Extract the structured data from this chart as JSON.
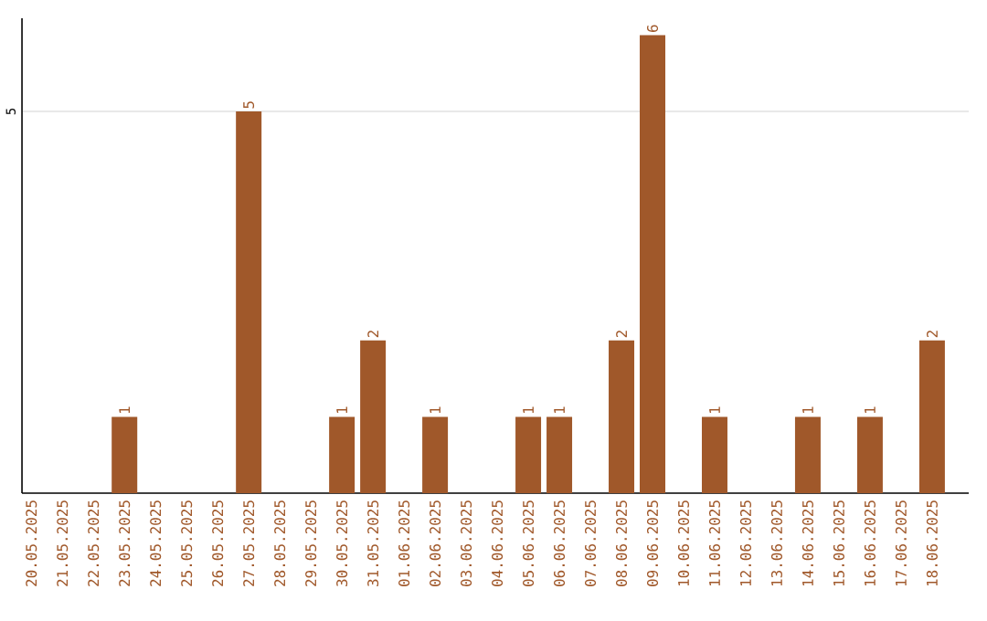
{
  "chart_data": {
    "type": "bar",
    "categories": [
      "20.05.2025",
      "21.05.2025",
      "22.05.2025",
      "23.05.2025",
      "24.05.2025",
      "25.05.2025",
      "26.05.2025",
      "27.05.2025",
      "28.05.2025",
      "29.05.2025",
      "30.05.2025",
      "31.05.2025",
      "01.06.2025",
      "02.06.2025",
      "03.06.2025",
      "04.06.2025",
      "05.06.2025",
      "06.06.2025",
      "07.06.2025",
      "08.06.2025",
      "09.06.2025",
      "10.06.2025",
      "11.06.2025",
      "12.06.2025",
      "13.06.2025",
      "14.06.2025",
      "15.06.2025",
      "16.06.2025",
      "17.06.2025",
      "18.06.2025"
    ],
    "values": [
      0,
      0,
      0,
      1,
      0,
      0,
      0,
      5,
      0,
      0,
      1,
      2,
      0,
      1,
      0,
      0,
      1,
      1,
      0,
      2,
      6,
      0,
      1,
      0,
      0,
      1,
      0,
      1,
      0,
      2
    ],
    "value_labels": [
      null,
      null,
      null,
      "1",
      null,
      null,
      null,
      "5",
      null,
      null,
      "1",
      "2",
      null,
      "1",
      null,
      null,
      "1",
      "1",
      null,
      "2",
      "6",
      null,
      "1",
      null,
      null,
      "1",
      null,
      "1",
      null,
      "2"
    ],
    "color": "#a0582a",
    "ylim": [
      0,
      6.22
    ],
    "yticks": [
      5
    ],
    "grid": "y"
  }
}
